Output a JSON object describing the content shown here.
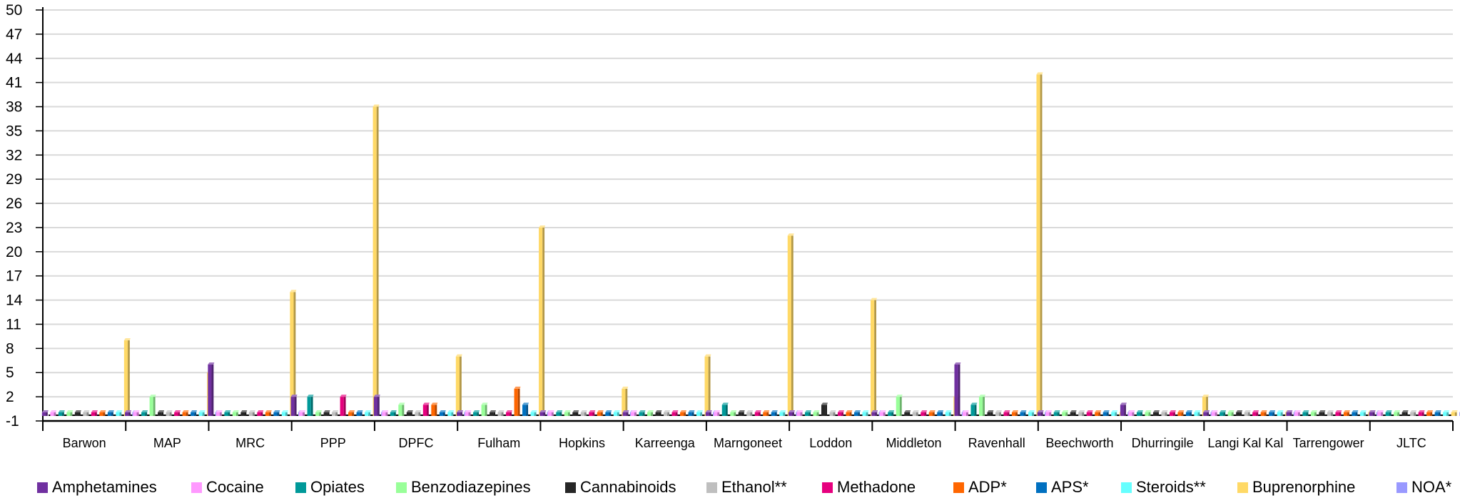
{
  "chart_data": {
    "type": "bar",
    "title": "",
    "xlabel": "",
    "ylabel": "",
    "ylim": [
      -1,
      50
    ],
    "yticks": [
      -1,
      2,
      5,
      8,
      11,
      14,
      17,
      20,
      23,
      26,
      29,
      32,
      35,
      38,
      41,
      44,
      47,
      50
    ],
    "grid": true,
    "legend_position": "bottom",
    "categories": [
      "Barwon",
      "MAP",
      "MRC",
      "PPP",
      "DPFC",
      "Fulham",
      "Hopkins",
      "Karreenga",
      "Marngoneet",
      "Loddon",
      "Middleton",
      "Ravenhall",
      "Beechworth",
      "Dhurringile",
      "Langi Kal Kal",
      "Tarrengower",
      "JLTC"
    ],
    "series": [
      {
        "name": "Amphetamines",
        "color": "#7030A0",
        "values": [
          0,
          0,
          6,
          2,
          2,
          0,
          0,
          0,
          0,
          0,
          0,
          6,
          0,
          1,
          0,
          0,
          0
        ]
      },
      {
        "name": "Cocaine",
        "color": "#FF99FF",
        "values": [
          0,
          0,
          0,
          0,
          0,
          0,
          0,
          0,
          0,
          0,
          0,
          0,
          0,
          0,
          0,
          0,
          0
        ]
      },
      {
        "name": "Opiates",
        "color": "#009999",
        "values": [
          0,
          0,
          0,
          2,
          0,
          0,
          0,
          0,
          1,
          0,
          0,
          1,
          0,
          0,
          0,
          0,
          0
        ]
      },
      {
        "name": "Benzodiazepines",
        "color": "#99FF99",
        "values": [
          0,
          2,
          0,
          0,
          1,
          1,
          0,
          0,
          0,
          0,
          2,
          2,
          0,
          0,
          0,
          0,
          0
        ]
      },
      {
        "name": "Cannabinoids",
        "color": "#262626",
        "values": [
          0,
          0,
          0,
          0,
          0,
          0,
          0,
          0,
          0,
          1,
          0,
          0,
          0,
          0,
          0,
          0,
          0
        ]
      },
      {
        "name": "Ethanol**",
        "color": "#BFBFBF",
        "values": [
          0,
          0,
          0,
          0,
          0,
          0,
          0,
          0,
          0,
          0,
          0,
          0,
          0,
          0,
          0,
          0,
          0
        ]
      },
      {
        "name": "Methadone",
        "color": "#E6007E",
        "values": [
          0,
          0,
          0,
          2,
          1,
          0,
          0,
          0,
          0,
          0,
          0,
          0,
          0,
          0,
          0,
          0,
          0
        ]
      },
      {
        "name": "ADP*",
        "color": "#FF6600",
        "values": [
          0,
          0,
          0,
          0,
          1,
          3,
          0,
          0,
          0,
          0,
          0,
          0,
          0,
          0,
          0,
          0,
          0
        ]
      },
      {
        "name": "APS*",
        "color": "#0070C0",
        "values": [
          0,
          0,
          0,
          0,
          0,
          1,
          0,
          0,
          0,
          0,
          0,
          0,
          0,
          0,
          0,
          0,
          0
        ]
      },
      {
        "name": "Steroids**",
        "color": "#66FFFF",
        "values": [
          0,
          0,
          0,
          0,
          0,
          0,
          0,
          0,
          0,
          0,
          0,
          0,
          0,
          0,
          0,
          0,
          0
        ]
      },
      {
        "name": "Buprenorphine",
        "color": "#FFD966",
        "values": [
          9,
          5,
          15,
          38,
          7,
          23,
          3,
          7,
          22,
          14,
          2,
          42,
          0,
          2,
          0,
          0,
          0
        ]
      },
      {
        "name": "NOA*",
        "color": "#9999FF",
        "values": [
          0,
          0,
          0,
          0,
          0,
          0,
          0,
          0,
          0,
          0,
          0,
          0,
          0,
          0,
          0,
          0,
          0
        ]
      }
    ]
  }
}
